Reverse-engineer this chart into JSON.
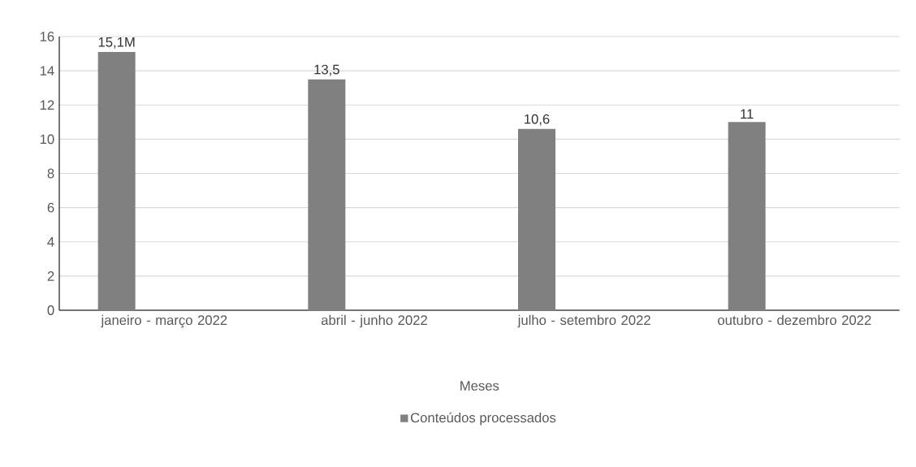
{
  "chart_data": {
    "type": "bar",
    "categories": [
      "janeiro - março 2022",
      "abril - junho 2022",
      "julho - setembro 2022",
      "outubro - dezembro 2022"
    ],
    "series": [
      {
        "name": "Conteúdos processados",
        "color": "#808080",
        "values": [
          15.1,
          13.5,
          10.6,
          11
        ],
        "value_labels": [
          "15,1M",
          "13,5",
          "10,6",
          "11"
        ]
      }
    ],
    "xlabel": "Meses",
    "ylim": [
      0,
      16
    ],
    "yticks": [
      0,
      2,
      4,
      6,
      8,
      10,
      12,
      14,
      16
    ],
    "grid": "y",
    "legend": "bottom"
  }
}
